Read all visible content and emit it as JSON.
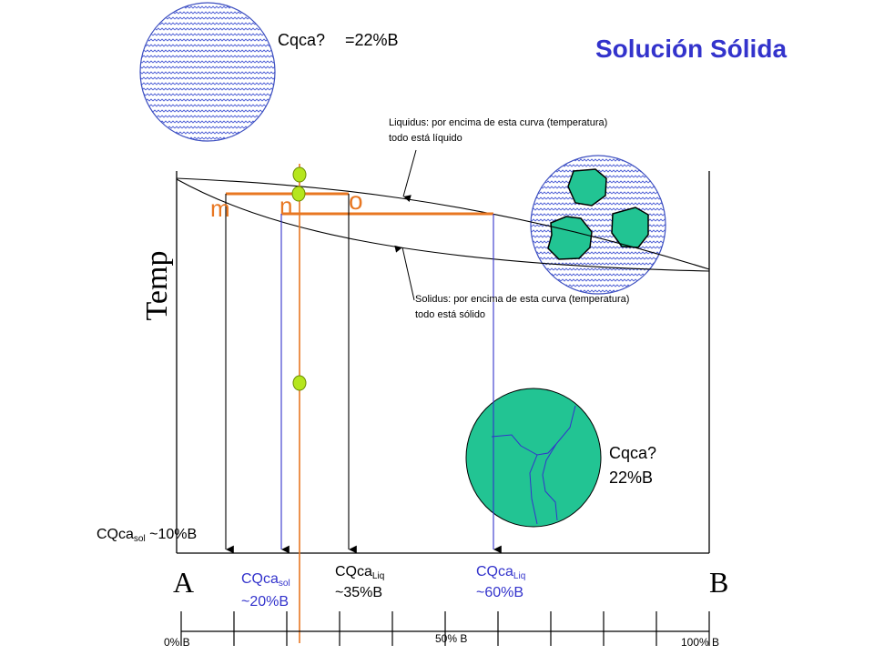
{
  "title": "Solución Sólida",
  "top_circle_label": {
    "line1": "Cqca?",
    "value": "=22%B"
  },
  "liquidus_note": {
    "line1": "Liquidus: por encima de esta curva (temperatura)",
    "line2": "todo está líquido"
  },
  "solidus_note": {
    "line1": "Solidus: por encima de esta curva (temperatura)",
    "line2": "todo está sólido"
  },
  "temp_axis_label": "Temp",
  "points": {
    "m": "m",
    "n": "n",
    "o": "o"
  },
  "bottom_circle_label": {
    "line1": "Cqca?",
    "line2": "22%B"
  },
  "readouts": {
    "sol10": {
      "main": "CQca",
      "sub": "sol",
      "value": "~10%B"
    },
    "sol20": {
      "main": "CQca",
      "sub": "sol",
      "value": "~20%B"
    },
    "liq35": {
      "main": "CQca",
      "sub": "Liq",
      "value": "~35%B"
    },
    "liq60": {
      "main": "CQca",
      "sub": "Liq",
      "value": "~60%B"
    }
  },
  "components": {
    "a": "A",
    "b": "B"
  },
  "composition_scale": {
    "left": "0% B",
    "middle": "50% B",
    "right": "100% B"
  },
  "colors": {
    "title": "#3333cc",
    "orange": "#e87722",
    "blue_line": "#3333cc",
    "grain_green": "#22c493",
    "marker": "#b5e61d",
    "liquid_pattern": "#4d5fd6"
  }
}
